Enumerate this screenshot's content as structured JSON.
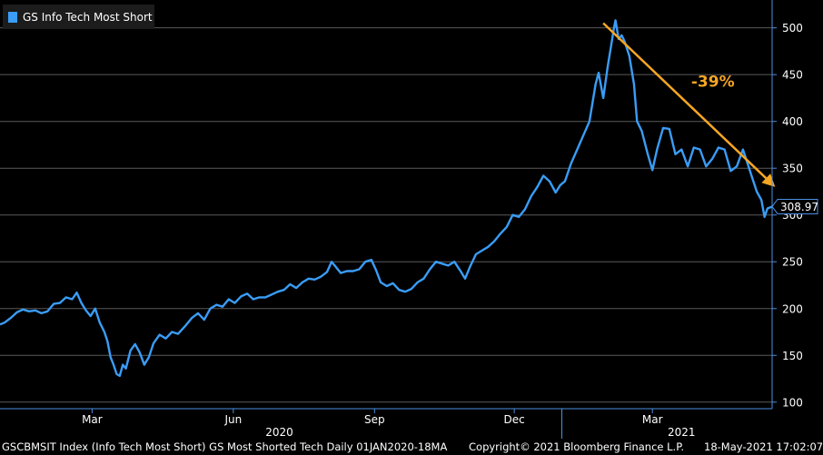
{
  "chart_data": {
    "type": "line",
    "legend": "GS Info Tech Most Short",
    "series_color": "#3a9df7",
    "axis_color": "#4a90e2",
    "grid_color": "#5a5a5a",
    "annotation_color": "#f5a623",
    "last_value_label": "308.97",
    "ylim": [
      93,
      522
    ],
    "yticks": [
      100,
      150,
      200,
      250,
      300,
      350,
      400,
      450,
      500
    ],
    "xlim": [
      "2020-01-01",
      "2021-05-18"
    ],
    "xticks": [
      {
        "date": "2020-03-01",
        "label": "Mar"
      },
      {
        "date": "2020-06-01",
        "label": "Jun"
      },
      {
        "date": "2020-09-01",
        "label": "Sep"
      },
      {
        "date": "2020-12-01",
        "label": "Dec"
      },
      {
        "date": "2021-03-01",
        "label": "Mar"
      }
    ],
    "years": [
      {
        "date": "2020-07-01",
        "label": "2020"
      },
      {
        "date": "2021-03-20",
        "label": "2021"
      }
    ],
    "year_separator": "2021-01-01",
    "annotation": {
      "label": "-39%",
      "arrow_from": {
        "date": "2021-01-28",
        "value": 505
      },
      "arrow_to": {
        "date": "2021-05-20",
        "value": 330
      }
    },
    "points": [
      [
        "2020-01-01",
        183
      ],
      [
        "2020-01-04",
        185
      ],
      [
        "2020-01-08",
        190
      ],
      [
        "2020-01-12",
        196
      ],
      [
        "2020-01-16",
        199
      ],
      [
        "2020-01-20",
        197
      ],
      [
        "2020-01-24",
        198
      ],
      [
        "2020-01-28",
        195
      ],
      [
        "2020-02-01",
        197
      ],
      [
        "2020-02-05",
        205
      ],
      [
        "2020-02-09",
        206
      ],
      [
        "2020-02-13",
        212
      ],
      [
        "2020-02-17",
        210
      ],
      [
        "2020-02-20",
        217
      ],
      [
        "2020-02-23",
        206
      ],
      [
        "2020-02-26",
        198
      ],
      [
        "2020-02-29",
        192
      ],
      [
        "2020-03-03",
        200
      ],
      [
        "2020-03-06",
        185
      ],
      [
        "2020-03-09",
        175
      ],
      [
        "2020-03-11",
        165
      ],
      [
        "2020-03-13",
        148
      ],
      [
        "2020-03-15",
        140
      ],
      [
        "2020-03-17",
        130
      ],
      [
        "2020-03-19",
        128
      ],
      [
        "2020-03-21",
        140
      ],
      [
        "2020-03-23",
        136
      ],
      [
        "2020-03-26",
        155
      ],
      [
        "2020-03-29",
        162
      ],
      [
        "2020-04-01",
        153
      ],
      [
        "2020-04-04",
        140
      ],
      [
        "2020-04-07",
        148
      ],
      [
        "2020-04-10",
        163
      ],
      [
        "2020-04-14",
        172
      ],
      [
        "2020-04-18",
        168
      ],
      [
        "2020-04-22",
        175
      ],
      [
        "2020-04-26",
        173
      ],
      [
        "2020-05-01",
        182
      ],
      [
        "2020-05-05",
        190
      ],
      [
        "2020-05-09",
        195
      ],
      [
        "2020-05-13",
        188
      ],
      [
        "2020-05-17",
        200
      ],
      [
        "2020-05-21",
        204
      ],
      [
        "2020-05-25",
        202
      ],
      [
        "2020-05-29",
        210
      ],
      [
        "2020-06-02",
        206
      ],
      [
        "2020-06-06",
        213
      ],
      [
        "2020-06-10",
        216
      ],
      [
        "2020-06-14",
        210
      ],
      [
        "2020-06-18",
        212
      ],
      [
        "2020-06-22",
        212
      ],
      [
        "2020-06-26",
        215
      ],
      [
        "2020-06-30",
        218
      ],
      [
        "2020-07-04",
        220
      ],
      [
        "2020-07-08",
        226
      ],
      [
        "2020-07-12",
        222
      ],
      [
        "2020-07-16",
        228
      ],
      [
        "2020-07-20",
        232
      ],
      [
        "2020-07-24",
        231
      ],
      [
        "2020-07-28",
        234
      ],
      [
        "2020-08-01",
        239
      ],
      [
        "2020-08-04",
        250
      ],
      [
        "2020-08-07",
        244
      ],
      [
        "2020-08-10",
        238
      ],
      [
        "2020-08-14",
        240
      ],
      [
        "2020-08-18",
        240
      ],
      [
        "2020-08-22",
        242
      ],
      [
        "2020-08-26",
        250
      ],
      [
        "2020-08-30",
        252
      ],
      [
        "2020-09-02",
        241
      ],
      [
        "2020-09-05",
        228
      ],
      [
        "2020-09-09",
        224
      ],
      [
        "2020-09-13",
        227
      ],
      [
        "2020-09-17",
        220
      ],
      [
        "2020-09-21",
        218
      ],
      [
        "2020-09-25",
        221
      ],
      [
        "2020-09-29",
        228
      ],
      [
        "2020-10-03",
        232
      ],
      [
        "2020-10-07",
        242
      ],
      [
        "2020-10-11",
        250
      ],
      [
        "2020-10-15",
        248
      ],
      [
        "2020-10-19",
        246
      ],
      [
        "2020-10-23",
        250
      ],
      [
        "2020-10-27",
        240
      ],
      [
        "2020-10-30",
        232
      ],
      [
        "2020-11-02",
        244
      ],
      [
        "2020-11-06",
        258
      ],
      [
        "2020-11-10",
        262
      ],
      [
        "2020-11-14",
        266
      ],
      [
        "2020-11-18",
        272
      ],
      [
        "2020-11-22",
        280
      ],
      [
        "2020-11-26",
        287
      ],
      [
        "2020-11-30",
        300
      ],
      [
        "2020-12-04",
        298
      ],
      [
        "2020-12-08",
        306
      ],
      [
        "2020-12-12",
        320
      ],
      [
        "2020-12-16",
        330
      ],
      [
        "2020-12-20",
        342
      ],
      [
        "2020-12-24",
        336
      ],
      [
        "2020-12-28",
        324
      ],
      [
        "2020-12-31",
        332
      ],
      [
        "2021-01-03",
        336
      ],
      [
        "2021-01-07",
        355
      ],
      [
        "2021-01-11",
        370
      ],
      [
        "2021-01-15",
        385
      ],
      [
        "2021-01-19",
        400
      ],
      [
        "2021-01-23",
        440
      ],
      [
        "2021-01-25",
        452
      ],
      [
        "2021-01-28",
        425
      ],
      [
        "2021-01-31",
        460
      ],
      [
        "2021-02-02",
        480
      ],
      [
        "2021-02-04",
        500
      ],
      [
        "2021-02-05",
        508
      ],
      [
        "2021-02-07",
        488
      ],
      [
        "2021-02-09",
        492
      ],
      [
        "2021-02-11",
        485
      ],
      [
        "2021-02-14",
        470
      ],
      [
        "2021-02-17",
        440
      ],
      [
        "2021-02-19",
        400
      ],
      [
        "2021-02-22",
        390
      ],
      [
        "2021-02-26",
        365
      ],
      [
        "2021-03-01",
        348
      ],
      [
        "2021-03-04",
        370
      ],
      [
        "2021-03-08",
        393
      ],
      [
        "2021-03-12",
        392
      ],
      [
        "2021-03-16",
        365
      ],
      [
        "2021-03-20",
        370
      ],
      [
        "2021-03-24",
        352
      ],
      [
        "2021-03-28",
        372
      ],
      [
        "2021-04-01",
        370
      ],
      [
        "2021-04-05",
        352
      ],
      [
        "2021-04-09",
        360
      ],
      [
        "2021-04-13",
        372
      ],
      [
        "2021-04-17",
        370
      ],
      [
        "2021-04-21",
        347
      ],
      [
        "2021-04-25",
        352
      ],
      [
        "2021-04-29",
        370
      ],
      [
        "2021-05-02",
        355
      ],
      [
        "2021-05-05",
        340
      ],
      [
        "2021-05-08",
        325
      ],
      [
        "2021-05-11",
        316
      ],
      [
        "2021-05-13",
        298
      ],
      [
        "2021-05-15",
        307
      ],
      [
        "2021-05-18",
        309
      ]
    ]
  },
  "footer": {
    "left": "GSCBMSIT Index (Info Tech Most Short) GS Most Shorted Tech  Daily 01JAN2020-18MA",
    "middle": "Copyright© 2021 Bloomberg Finance L.P.",
    "right": "18-May-2021 17:02:07"
  }
}
